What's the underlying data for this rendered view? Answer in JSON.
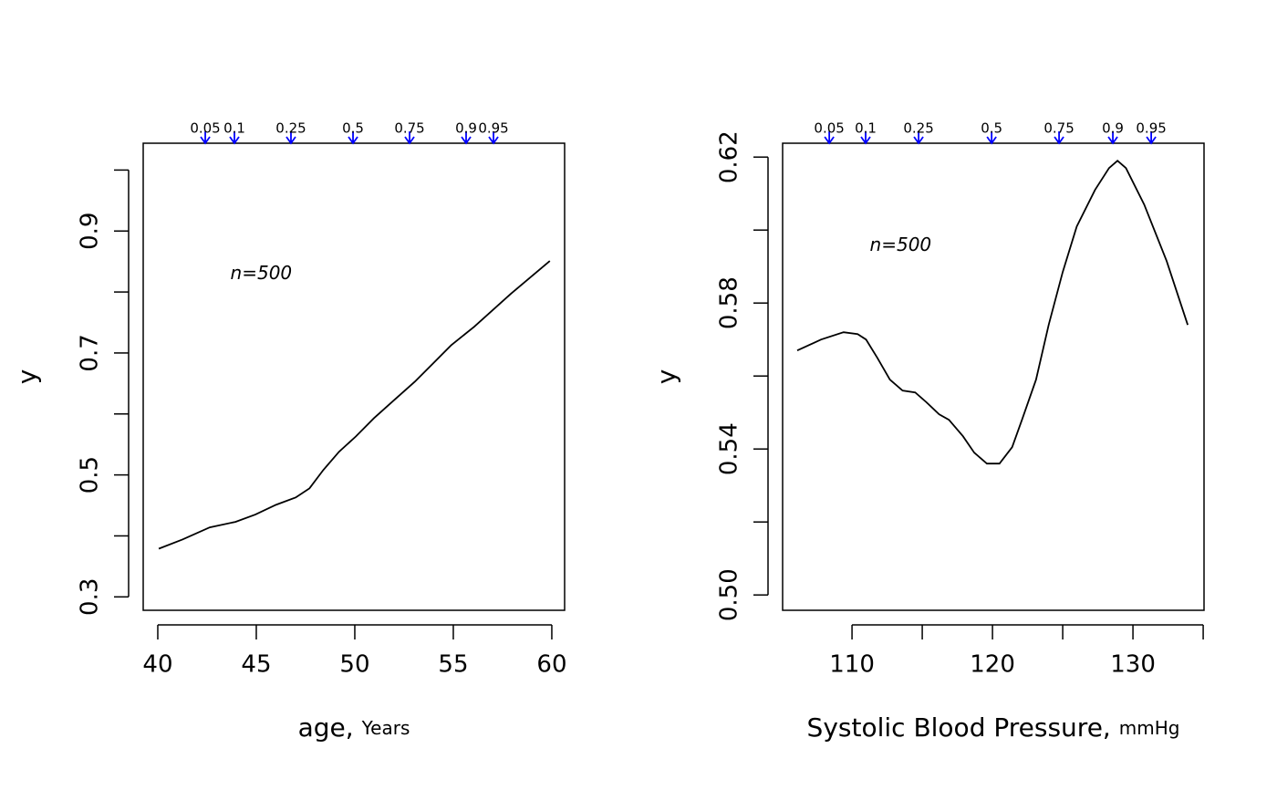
{
  "chart_data": [
    {
      "type": "line",
      "x_label": "age,",
      "x_unit": "Years",
      "y_label": "y",
      "annotation": "n=500",
      "x": [
        40.05,
        41.25,
        42.64,
        43.94,
        44.95,
        46.0,
        47.0,
        47.7,
        48.4,
        49.2,
        50.05,
        50.97,
        51.9,
        53.05,
        53.98,
        54.9,
        56.06,
        57.92,
        59.9
      ],
      "values": [
        0.379,
        0.394,
        0.414,
        0.423,
        0.435,
        0.451,
        0.463,
        0.478,
        0.508,
        0.538,
        0.563,
        0.593,
        0.62,
        0.653,
        0.683,
        0.713,
        0.743,
        0.797,
        0.851
      ],
      "color": "#000000",
      "xlim": [
        39.26,
        60.65
      ],
      "xticks": [
        40,
        45,
        50,
        55,
        60
      ],
      "xminorticks": [],
      "ylim": [
        0.278,
        1.044
      ],
      "yticks": [
        0.3,
        0.5,
        0.7,
        0.9
      ],
      "yminorticks": [
        0.4,
        0.6,
        0.8,
        1.0
      ],
      "quantiles": {
        "color": "#0000ff",
        "probs": [
          0.05,
          0.1,
          0.25,
          0.5,
          0.75,
          0.9,
          0.95
        ],
        "x": [
          42.41,
          43.89,
          46.76,
          49.91,
          52.78,
          55.65,
          57.04
        ]
      }
    },
    {
      "type": "line",
      "x_label": "Systolic Blood Pressure,",
      "x_unit": "mmHg",
      "y_label": "y",
      "annotation": "n=500",
      "x": [
        106.1,
        107.8,
        109.4,
        110.4,
        111.0,
        111.8,
        112.7,
        113.6,
        114.5,
        115.3,
        116.2,
        116.9,
        117.9,
        118.7,
        119.6,
        120.5,
        121.4,
        122.1,
        123.1,
        124.0,
        125.0,
        126.0,
        127.3,
        128.3,
        128.9,
        129.5,
        130.8,
        132.4,
        133.9
      ],
      "values": [
        0.567,
        0.57,
        0.572,
        0.5715,
        0.57,
        0.565,
        0.559,
        0.556,
        0.5555,
        0.5528,
        0.5495,
        0.548,
        0.5435,
        0.539,
        0.536,
        0.536,
        0.5405,
        0.548,
        0.559,
        0.574,
        0.5885,
        0.601,
        0.611,
        0.617,
        0.619,
        0.617,
        0.607,
        0.5915,
        0.574
      ],
      "color": "#000000",
      "xlim": [
        105.06,
        135.06
      ],
      "xticks": [
        110,
        120,
        130
      ],
      "xminorticks": [
        115,
        125,
        135
      ],
      "ylim": [
        0.4958,
        0.6238
      ],
      "yticks": [
        {
          "value": 0.5,
          "label": "0.50"
        },
        0.54,
        0.58,
        0.62
      ],
      "yminorticks": [
        0.52,
        0.56,
        0.6
      ],
      "quantiles": {
        "color": "#0000ff",
        "probs": [
          0.05,
          0.1,
          0.25,
          0.5,
          0.75,
          0.9,
          0.95
        ],
        "x": [
          108.38,
          110.97,
          114.74,
          119.94,
          124.74,
          128.57,
          131.3
        ]
      }
    }
  ]
}
